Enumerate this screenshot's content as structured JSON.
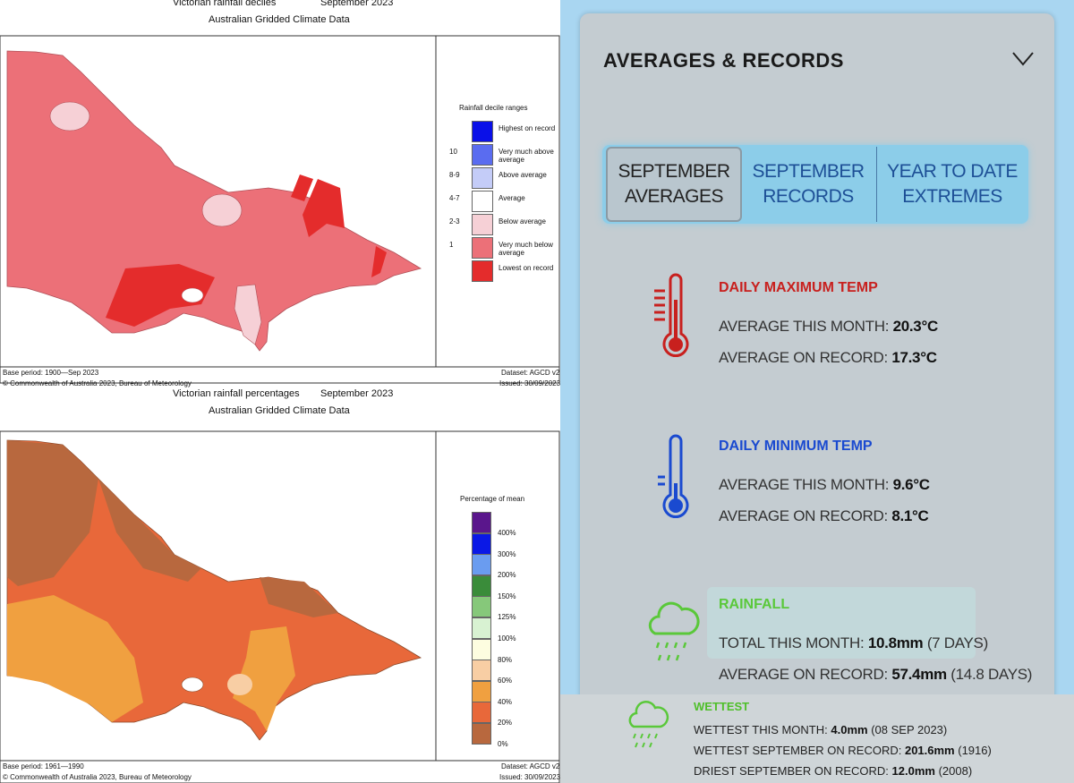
{
  "maps": [
    {
      "title": "Victorian rainfall deciles",
      "date": "September 2023",
      "subtitle": "Australian Gridded Climate Data",
      "legend_title": "Rainfall decile ranges",
      "legend": [
        {
          "label": "Highest on record",
          "color": "#0a10e8"
        },
        {
          "range": "10",
          "label": "Very much above average",
          "color": "#5a6cf0"
        },
        {
          "range": "8-9",
          "label": "Above average",
          "color": "#c4ccf8"
        },
        {
          "range": "4-7",
          "label": "Average",
          "color": "#ffffff"
        },
        {
          "range": "2-3",
          "label": "Below average",
          "color": "#f6d0d6"
        },
        {
          "range": "1",
          "label": "Very much below average",
          "color": "#ec7078"
        },
        {
          "label": "Lowest on record",
          "color": "#e42c2c"
        }
      ],
      "base_period": "Base period: 1900—Sep 2023",
      "dataset": "Dataset: AGCD v2",
      "copyright": "© Commonwealth of Australia 2023, Bureau of Meteorology",
      "issued": "Issued: 30/09/2023"
    },
    {
      "title": "Victorian rainfall percentages",
      "date": "September 2023",
      "subtitle": "Australian Gridded Climate Data",
      "legend_title": "Percentage of mean",
      "legend": [
        {
          "label": "400%",
          "color": "#5a168c"
        },
        {
          "label": "300%",
          "color": "#0a18e6"
        },
        {
          "label": "200%",
          "color": "#6a9cf0"
        },
        {
          "label": "150%",
          "color": "#3a8c3a"
        },
        {
          "label": "125%",
          "color": "#86c87a"
        },
        {
          "label": "100%",
          "color": "#d8f2d2"
        },
        {
          "label": "80%",
          "color": "#fdfde0"
        },
        {
          "label": "60%",
          "color": "#f8cea4"
        },
        {
          "label": "40%",
          "color": "#f0a040"
        },
        {
          "label": "20%",
          "color": "#e8683a"
        },
        {
          "label": "0%",
          "color": "#b8683e"
        }
      ],
      "base_period": "Base period: 1961—1990",
      "dataset": "Dataset: AGCD v2",
      "copyright": "© Commonwealth of Australia 2023, Bureau of Meteorology",
      "issued": "Issued: 30/09/2023"
    }
  ],
  "panel": {
    "title": "AVERAGES & RECORDS",
    "tabs": [
      "SEPTEMBER AVERAGES",
      "SEPTEMBER RECORDS",
      "YEAR TO DATE EXTREMES"
    ],
    "sections": [
      {
        "heading": "DAILY MAXIMUM TEMP",
        "lines": [
          {
            "label": "AVERAGE THIS MONTH:",
            "value": "20.3°C"
          },
          {
            "label": "AVERAGE ON RECORD:",
            "value": "17.3°C"
          }
        ]
      },
      {
        "heading": "DAILY MINIMUM TEMP",
        "lines": [
          {
            "label": "AVERAGE THIS MONTH:",
            "value": "9.6°C"
          },
          {
            "label": "AVERAGE ON RECORD:",
            "value": "8.1°C"
          }
        ]
      },
      {
        "heading": "RAINFALL",
        "lines": [
          {
            "label": "TOTAL THIS MONTH:",
            "value": "10.8mm",
            "extra": "(7 DAYS)"
          },
          {
            "label": "AVERAGE ON RECORD:",
            "value": "57.4mm",
            "extra": "(14.8 DAYS)"
          }
        ]
      }
    ],
    "wettest": {
      "heading": "WETTEST",
      "lines": [
        {
          "label": "WETTEST THIS MONTH:",
          "value": "4.0mm",
          "extra": "(08 SEP 2023)"
        },
        {
          "label": "WETTEST SEPTEMBER ON RECORD:",
          "value": "201.6mm",
          "extra": "(1916)"
        },
        {
          "label": "DRIEST SEPTEMBER ON RECORD:",
          "value": "12.0mm",
          "extra": "(2008)"
        }
      ]
    }
  }
}
